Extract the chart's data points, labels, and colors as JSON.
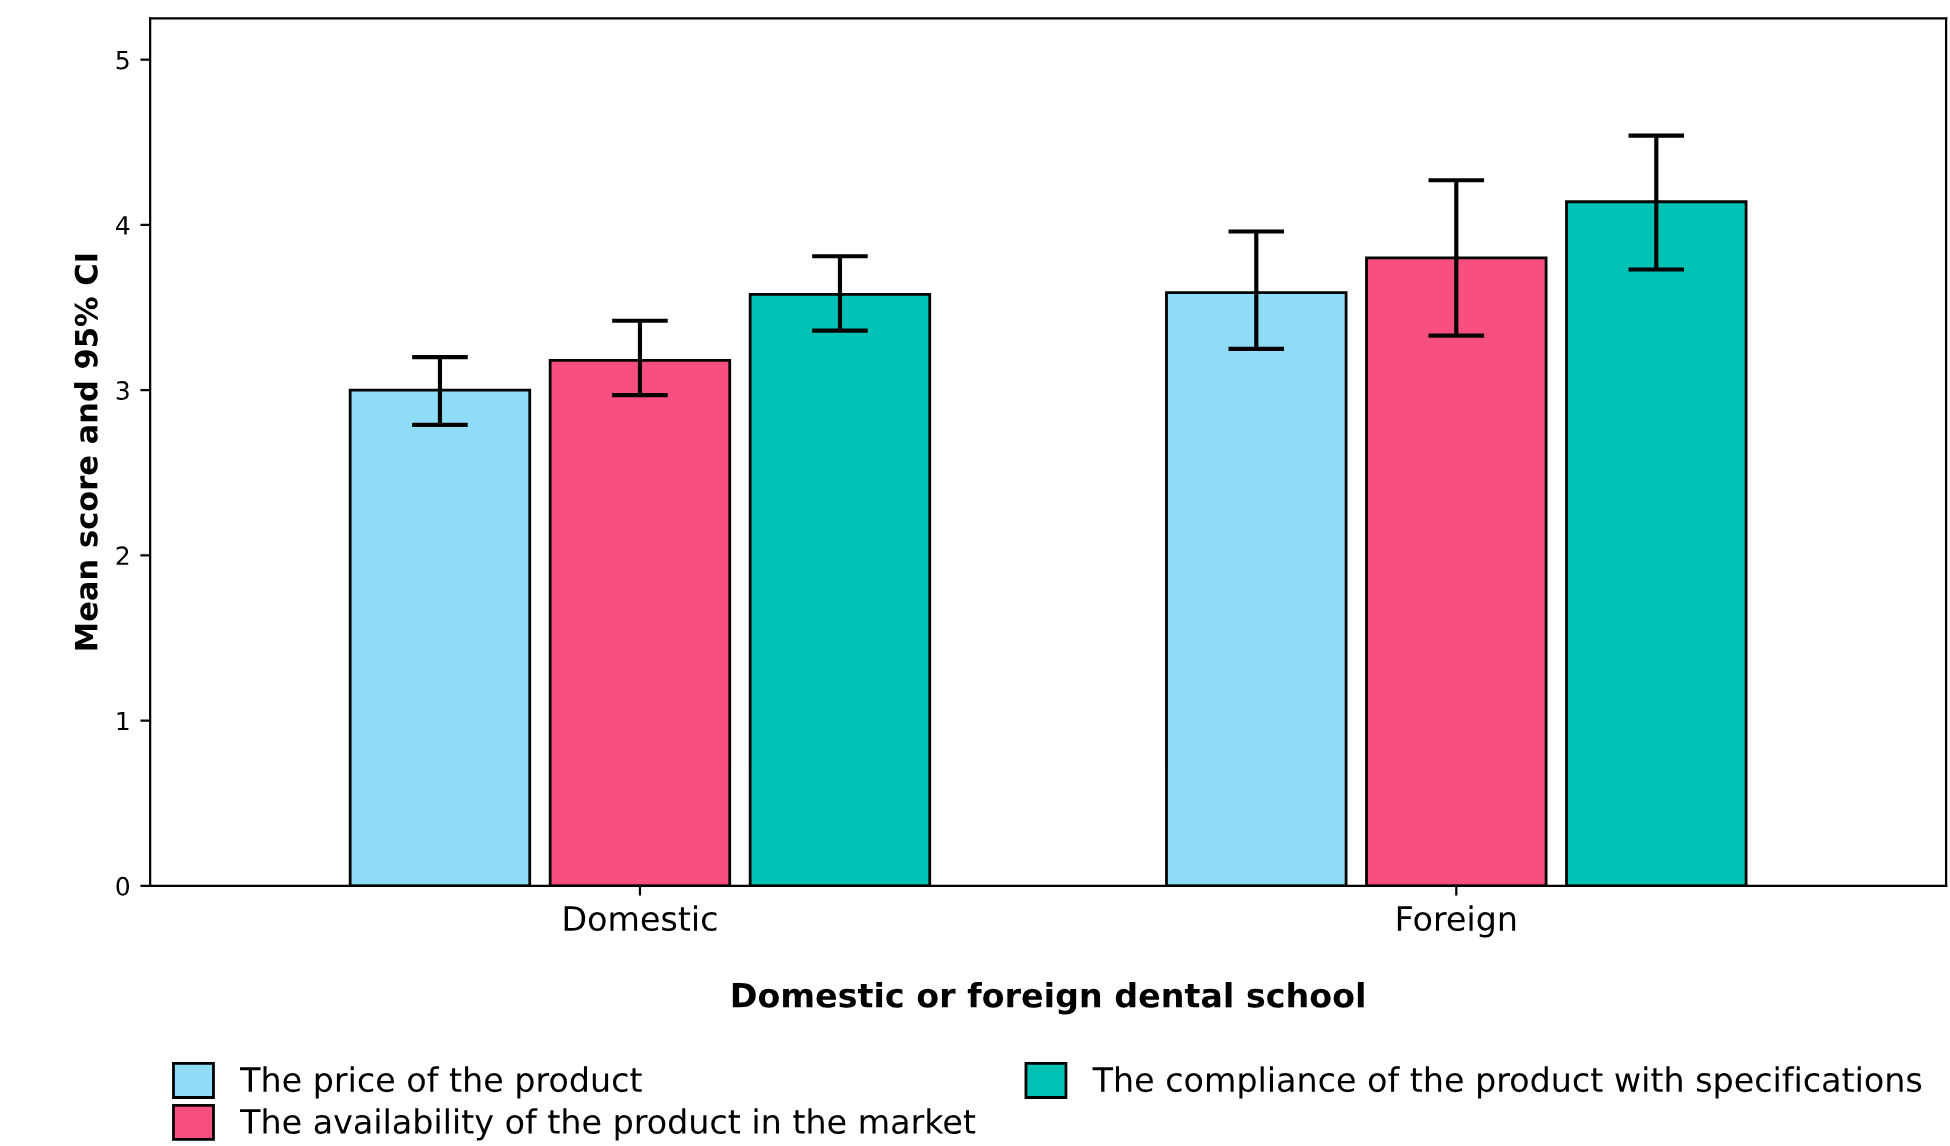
{
  "chart_data": {
    "type": "bar",
    "xlabel": "Domestic or foreign dental school",
    "ylabel": "Mean score and 95% CI",
    "categories": [
      "Domestic",
      "Foreign"
    ],
    "series": [
      {
        "name": "The price of the product",
        "color": "#8edcf5",
        "values": [
          3.0,
          3.59
        ],
        "errors": [
          [
            2.79,
            3.2
          ],
          [
            3.25,
            3.96
          ]
        ]
      },
      {
        "name": "The availability of the product in the market",
        "color": "#f74f80",
        "values": [
          3.18,
          3.8
        ],
        "errors": [
          [
            2.97,
            3.42
          ],
          [
            3.33,
            4.27
          ]
        ]
      },
      {
        "name": "The compliance of the product with specifications",
        "color": "#00c3b6",
        "values": [
          3.58,
          4.14
        ],
        "errors": [
          [
            3.36,
            3.81
          ],
          [
            3.73,
            4.54
          ]
        ]
      }
    ],
    "ylim": [
      0,
      5.25
    ],
    "yticks": [
      0,
      1,
      2,
      3,
      4,
      5
    ],
    "grid": false,
    "legend": "bottom"
  }
}
